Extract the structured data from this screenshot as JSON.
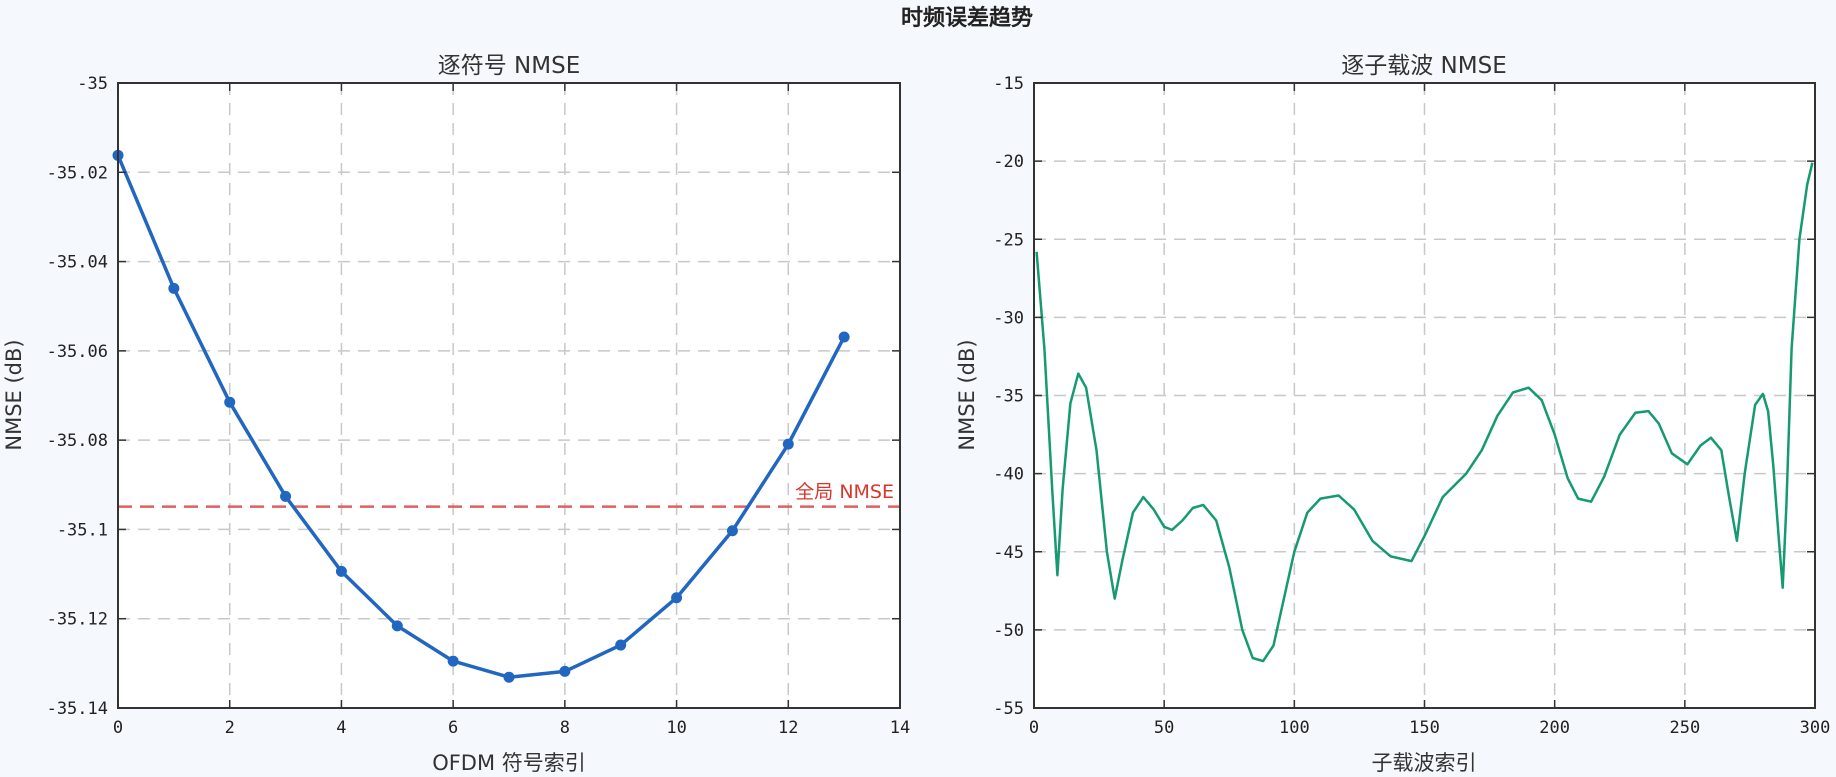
{
  "figure": {
    "suptitle": "时频误差趋势",
    "background": "#f5f9fe",
    "axes_background": "#ffffff",
    "grid_color": "#c8c8c8"
  },
  "chart_data": [
    {
      "type": "line",
      "title": "逐符号 NMSE",
      "xlabel": "OFDM 符号索引",
      "ylabel": "NMSE (dB)",
      "xlim": [
        0,
        14
      ],
      "ylim": [
        -35.14,
        -35
      ],
      "xticks": [
        "0",
        "2",
        "4",
        "6",
        "8",
        "10",
        "12",
        "14"
      ],
      "yticks": [
        "-35",
        "-35.02",
        "-35.04",
        "-35.06",
        "-35.08",
        "-35.1",
        "-35.12",
        "-35.14"
      ],
      "grid": true,
      "series": [
        {
          "name": "逐符号 NMSE",
          "color": "#2166c0",
          "marker": "circle",
          "x": [
            0,
            1,
            2,
            3,
            4,
            5,
            6,
            7,
            8,
            9,
            10,
            11,
            12,
            13
          ],
          "values": [
            -35.0162,
            -35.046,
            -35.0715,
            -35.0926,
            -35.1094,
            -35.1216,
            -35.1295,
            -35.1331,
            -35.1318,
            -35.1259,
            -35.1153,
            -35.1003,
            -35.0809,
            -35.0569
          ]
        }
      ],
      "annotations": [
        {
          "type": "hline",
          "y": -35.0949,
          "style": "dashed",
          "color": "#e06060",
          "label": "全局 NMSE",
          "label_color": "#d9362b"
        }
      ]
    },
    {
      "type": "line",
      "title": "逐子载波 NMSE",
      "xlabel": "子载波索引",
      "ylabel": "NMSE (dB)",
      "xlim": [
        0,
        300
      ],
      "ylim": [
        -55,
        -15
      ],
      "xticks": [
        "0",
        "50",
        "100",
        "150",
        "200",
        "250",
        "300"
      ],
      "yticks": [
        "-15",
        "-20",
        "-25",
        "-30",
        "-35",
        "-40",
        "-45",
        "-50",
        "-55"
      ],
      "grid": true,
      "series": [
        {
          "name": "逐子载波 NMSE",
          "color": "#159a72",
          "marker": "none",
          "x": [
            1,
            4,
            7,
            9,
            11,
            14,
            17,
            20,
            24,
            28,
            31,
            34,
            38,
            42,
            46,
            50,
            53,
            57,
            61,
            65,
            70,
            75,
            80,
            84,
            88,
            92,
            96,
            100,
            105,
            110,
            117,
            123,
            130,
            137,
            145,
            150,
            157,
            166,
            172,
            178,
            184,
            190,
            195,
            200,
            205,
            209,
            214,
            219,
            225,
            231,
            236,
            240,
            245,
            251,
            256,
            260,
            264,
            267,
            270,
            273,
            277,
            280,
            282,
            284,
            286,
            287.6,
            289,
            291,
            294,
            297,
            299
          ],
          "values": [
            -25.8,
            -32.0,
            -41.0,
            -46.5,
            -41.0,
            -35.5,
            -33.6,
            -34.5,
            -38.5,
            -45.0,
            -48.0,
            -45.5,
            -42.5,
            -41.5,
            -42.3,
            -43.4,
            -43.6,
            -43.0,
            -42.2,
            -42.0,
            -43.0,
            -46.0,
            -50.0,
            -51.8,
            -52.0,
            -51.0,
            -48.0,
            -45.0,
            -42.5,
            -41.6,
            -41.4,
            -42.3,
            -44.3,
            -45.3,
            -45.6,
            -44.0,
            -41.5,
            -40.0,
            -38.5,
            -36.3,
            -34.8,
            -34.5,
            -35.3,
            -37.5,
            -40.3,
            -41.6,
            -41.8,
            -40.2,
            -37.5,
            -36.1,
            -36.0,
            -36.8,
            -38.7,
            -39.4,
            -38.2,
            -37.7,
            -38.5,
            -41.5,
            -44.3,
            -40.0,
            -35.6,
            -34.9,
            -36.0,
            -39.5,
            -44.0,
            -47.3,
            -42.0,
            -32.0,
            -25.0,
            -21.5,
            -20.1
          ]
        }
      ]
    }
  ]
}
